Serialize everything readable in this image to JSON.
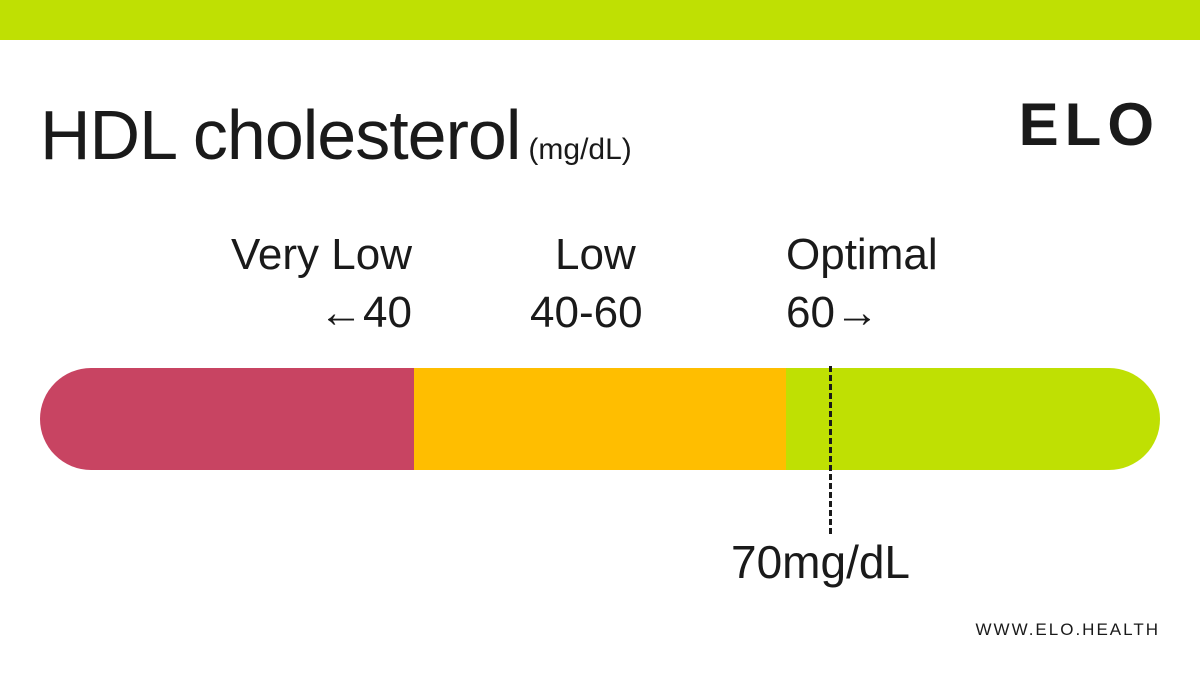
{
  "brand": {
    "logo_text": "ELO",
    "website": "WWW.ELO.HEALTH",
    "accent_color": "#BFE003"
  },
  "header": {
    "title": "HDL cholesterol",
    "unit": "(mg/dL)"
  },
  "ranges": [
    {
      "label": "Very Low",
      "range": "←40",
      "color": "#C84462"
    },
    {
      "label": "Low",
      "range": "40-60",
      "color": "#FFBE00"
    },
    {
      "label": "Optimal",
      "range": "60→",
      "color": "#BFE003"
    }
  ],
  "marker": {
    "label": "70mg/dL"
  }
}
